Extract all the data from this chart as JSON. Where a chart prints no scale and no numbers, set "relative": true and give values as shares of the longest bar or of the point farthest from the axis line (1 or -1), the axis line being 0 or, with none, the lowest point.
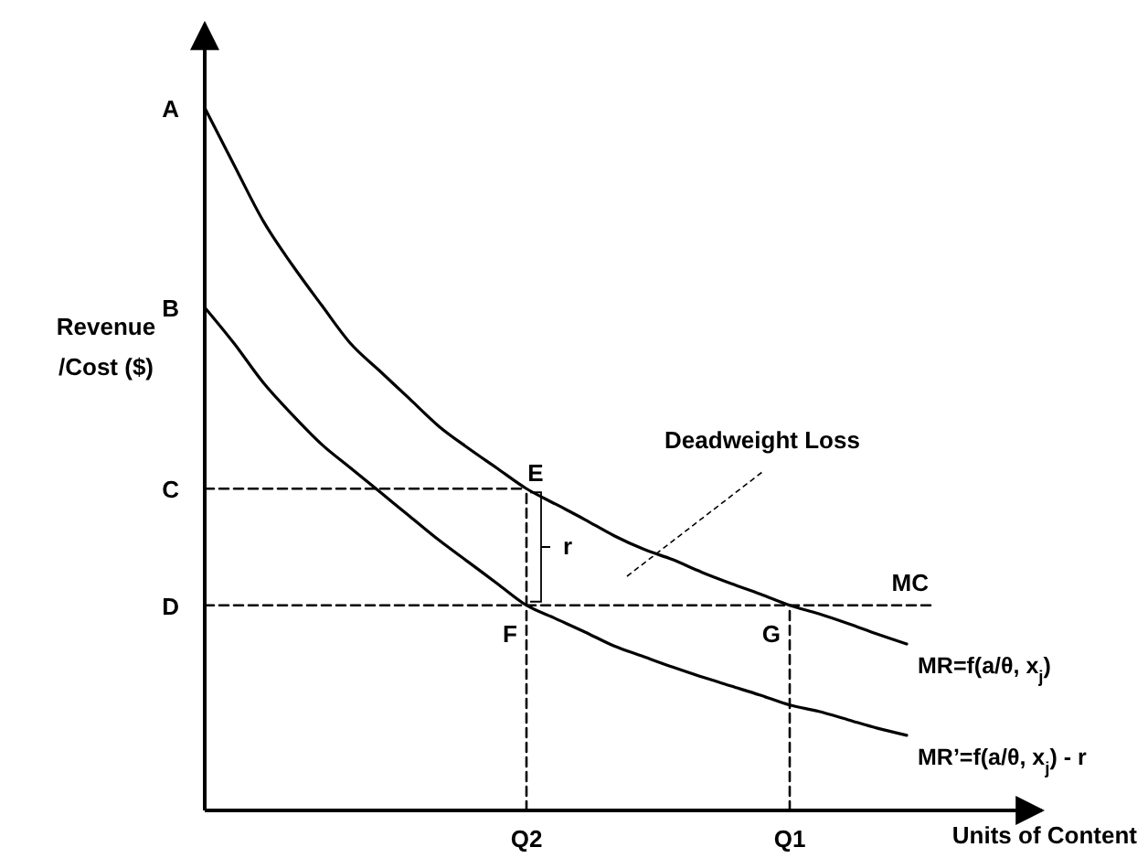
{
  "chart_data": {
    "type": "line",
    "relative": true,
    "xlabel": "Units of Content",
    "ylabel": "Revenue /Cost ($)",
    "categories": [
      null,
      null,
      null,
      null,
      null,
      null,
      null,
      null,
      null,
      null,
      null,
      "Q2",
      null,
      null,
      null,
      null,
      null,
      null,
      null,
      null,
      "Q1",
      null,
      null,
      null,
      null,
      null
    ],
    "series": [
      {
        "name": "MR=f(a/θ, x$_{j}$)",
        "color": "#000000",
        "line_style": "solid",
        "values": [
          1,
          0.919,
          0.839,
          0.776,
          0.719,
          0.664,
          0.625,
          0.586,
          0.547,
          0.516,
          0.487,
          0.458,
          0.436,
          0.414,
          0.391,
          0.372,
          0.357,
          0.339,
          0.323,
          0.308,
          0.292,
          0.28,
          0.266,
          0.251,
          0.237,
          null
        ]
      },
      {
        "name": "MR’=f(a/θ, x$_{j}$) - r",
        "color": "#000000",
        "line_style": "solid",
        "values": [
          0.716,
          0.665,
          0.609,
          0.563,
          0.521,
          0.487,
          0.453,
          0.419,
          0.385,
          0.354,
          0.323,
          0.292,
          0.273,
          0.254,
          0.234,
          0.219,
          0.204,
          0.19,
          0.177,
          0.164,
          0.15,
          0.141,
          0.129,
          0.117,
          0.107,
          null
        ]
      },
      {
        "name": "MC",
        "color": "#000000",
        "line_style": "dashed",
        "values": [
          0.292,
          0.292,
          0.292,
          0.292,
          0.292,
          0.292,
          0.292,
          0.292,
          0.292,
          0.292,
          0.292,
          0.292,
          0.292,
          0.292,
          0.292,
          0.292,
          0.292,
          0.292,
          0.292,
          0.292,
          0.292,
          0.292,
          0.292,
          0.292,
          0.292,
          0.292
        ]
      },
      {
        "color": "#000000",
        "line_style": "dashed",
        "values": [
          0.458,
          0.458,
          0.458,
          0.458,
          0.458,
          0.458,
          0.458,
          0.458,
          0.458,
          0.458,
          0.458,
          0.458,
          null,
          null,
          null,
          null,
          null,
          null,
          null,
          null,
          null,
          null,
          null,
          null,
          null,
          null
        ]
      },
      {
        "color": "#000000",
        "line_style": "dashed",
        "x": [
          "Q2",
          "Q2"
        ],
        "values": [
          0,
          0.458
        ]
      },
      {
        "color": "#000000",
        "line_style": "dashed",
        "x": [
          "Q1",
          "Q1"
        ],
        "values": [
          0,
          0.292
        ]
      }
    ],
    "annotations": [
      "A",
      "B",
      "C",
      "D",
      {
        "text": "E",
        "x": "Q2",
        "y": 0.458
      },
      {
        "text": "F",
        "x": "Q2",
        "y": 0.292
      },
      {
        "text": "G",
        "x": "Q1",
        "y": 0.292
      },
      {
        "text": "r",
        "x": "Q2",
        "y": 0.375
      },
      "Deadweight Loss"
    ]
  }
}
